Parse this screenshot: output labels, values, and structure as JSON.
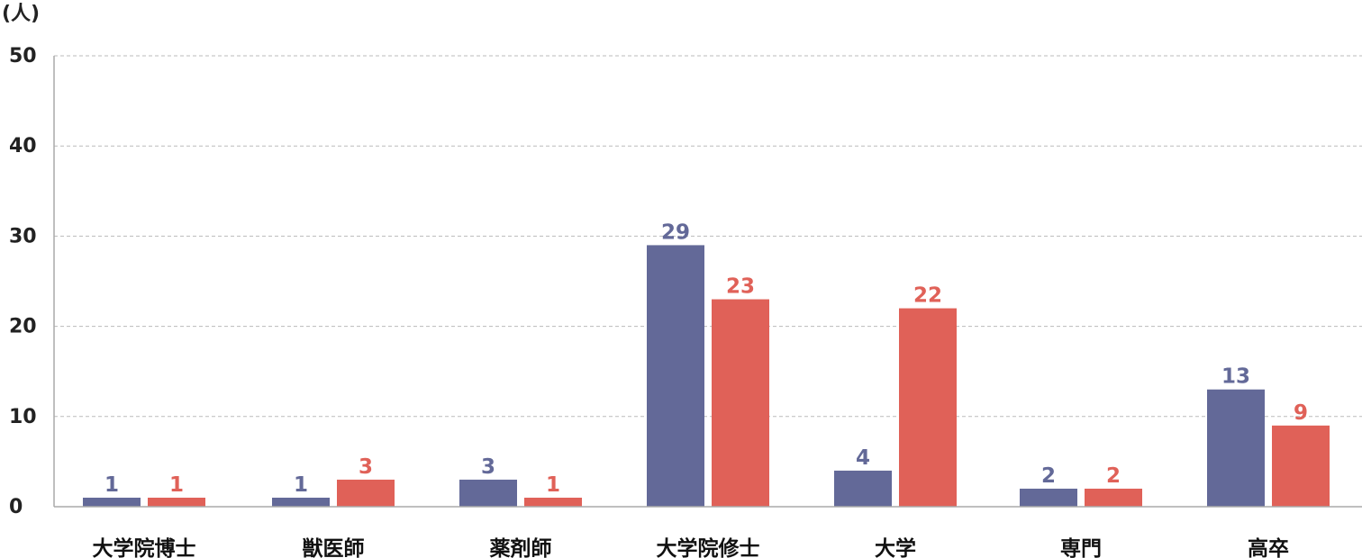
{
  "chart_data": {
    "type": "bar",
    "unit_label": "(人)",
    "categories": [
      "大学院博士",
      "獣医師",
      "薬剤師",
      "大学院修士",
      "大学",
      "専門",
      "高卒"
    ],
    "series": [
      {
        "values": [
          1,
          1,
          3,
          29,
          4,
          2,
          13
        ]
      },
      {
        "values": [
          1,
          3,
          1,
          23,
          22,
          2,
          9
        ]
      }
    ],
    "series_colors": [
      "#636998",
      "#e06158"
    ],
    "ylim": [
      0,
      50
    ],
    "yticks": [
      0,
      10,
      20,
      30,
      40,
      50
    ],
    "grid": true,
    "legend": "none"
  }
}
